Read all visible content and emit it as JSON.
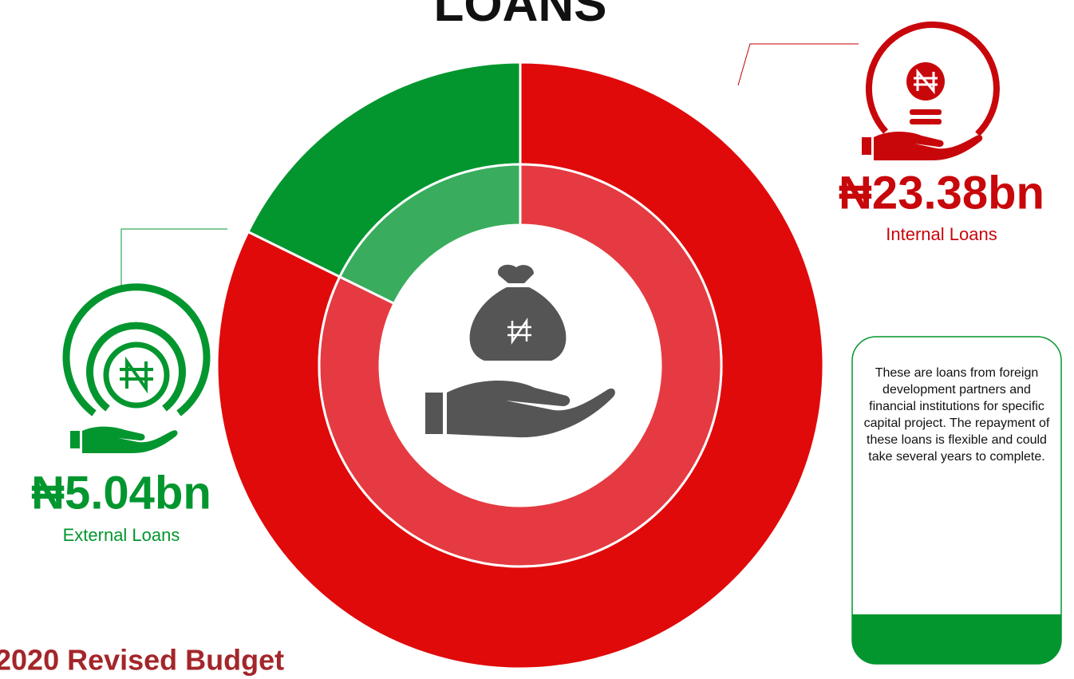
{
  "chart_data": {
    "type": "pie",
    "title": "LOANS",
    "subtitle": "2020 Revised Budget",
    "categories": [
      "Internal Loans",
      "External Loans"
    ],
    "values": [
      23.38,
      5.04
    ],
    "value_labels": [
      "₦23.38bn",
      "₦5.04bn"
    ],
    "colors": [
      "#e00a0b",
      "#03962f"
    ],
    "inner_colors": [
      "#e53a41",
      "#39ad5d"
    ],
    "annotation": "These are loans from foreign development partners and financial institutions for specific capital project. The repayment of these loans is flexible and could take several years to complete."
  }
}
